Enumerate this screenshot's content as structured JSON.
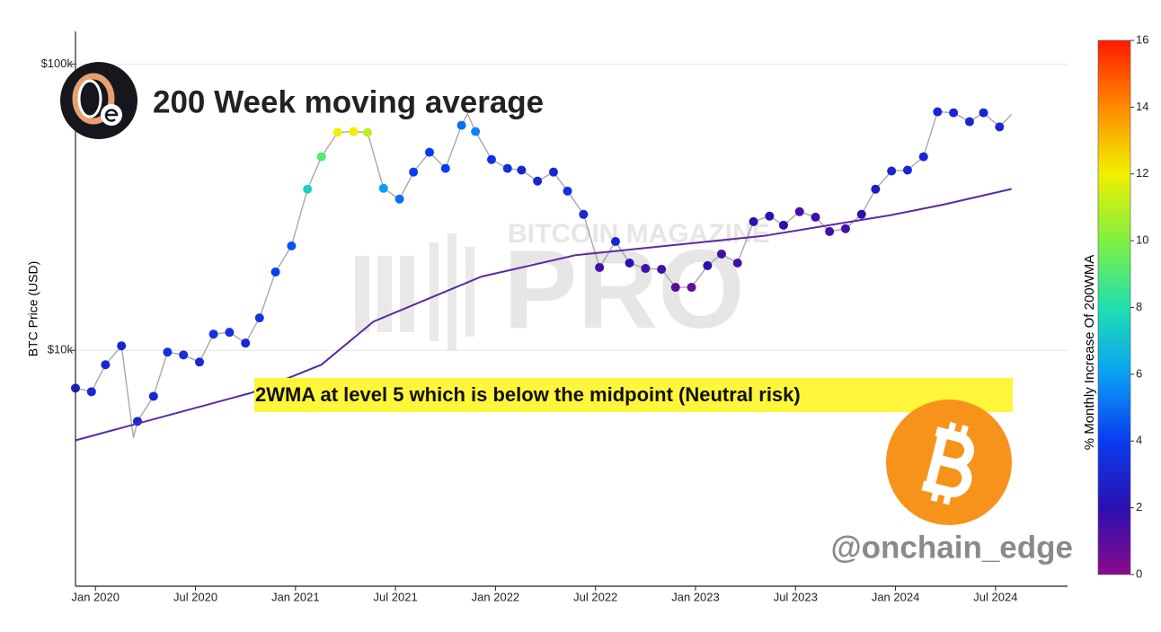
{
  "chart_data": {
    "type": "line",
    "title": "200 Week moving average",
    "y_label": "BTC Price (USD)",
    "annotation": "2WMA at level 5 which is below the midpoint (Neutral risk)",
    "handle": "@onchain_edge",
    "watermark": [
      "BITCOIN MAGAZINE",
      "PRO"
    ],
    "xlim": [
      2019.9,
      2024.86
    ],
    "xticks": [
      {
        "value": 2020,
        "label": "Jan 2020"
      },
      {
        "value": 2020.5,
        "label": "Jul 2020"
      },
      {
        "value": 2021,
        "label": "Jan 2021"
      },
      {
        "value": 2021.5,
        "label": "Jul 2021"
      },
      {
        "value": 2022,
        "label": "Jan 2022"
      },
      {
        "value": 2022.5,
        "label": "Jul 2022"
      },
      {
        "value": 2023,
        "label": "Jan 2023"
      },
      {
        "value": 2023.5,
        "label": "Jul 2023"
      },
      {
        "value": 2024,
        "label": "Jan 2024"
      },
      {
        "value": 2024.5,
        "label": "Jul 2024"
      }
    ],
    "ylim": [
      1500,
      130000
    ],
    "yticks": [
      {
        "value": 10000,
        "label": "$10k"
      },
      {
        "value": 100000,
        "label": "$100k"
      }
    ],
    "log_y": true,
    "grid": true,
    "series": [
      {
        "type": "line",
        "color": "#a8a8a8",
        "x": [
          2019.9,
          2019.98,
          2020.05,
          2020.13,
          2020.19,
          2020.21,
          2020.29,
          2020.36,
          2020.44,
          2020.52,
          2020.59,
          2020.67,
          2020.75,
          2020.82,
          2020.9,
          2020.98,
          2021.06,
          2021.13,
          2021.21,
          2021.29,
          2021.36,
          2021.44,
          2021.52,
          2021.59,
          2021.67,
          2021.75,
          2021.83,
          2021.86,
          2021.9,
          2021.98,
          2022.06,
          2022.13,
          2022.21,
          2022.29,
          2022.36,
          2022.44,
          2022.52,
          2022.6,
          2022.67,
          2022.75,
          2022.83,
          2022.9,
          2022.98,
          2023.06,
          2023.13,
          2023.21,
          2023.29,
          2023.37,
          2023.44,
          2023.52,
          2023.6,
          2023.67,
          2023.75,
          2023.83,
          2023.9,
          2023.98,
          2024.06,
          2024.14,
          2024.21,
          2024.29,
          2024.37,
          2024.44,
          2024.52,
          2024.58
        ],
        "values": [
          7380,
          7170,
          8910,
          10370,
          4950,
          5650,
          6910,
          9860,
          9640,
          9100,
          11390,
          11560,
          10600,
          12980,
          18780,
          23160,
          36560,
          47450,
          57700,
          58100,
          57700,
          36800,
          33750,
          41950,
          49200,
          43200,
          61100,
          67000,
          58100,
          46400,
          43200,
          42600,
          39000,
          41950,
          36000,
          29850,
          19470,
          24000,
          20180,
          19320,
          19190,
          16600,
          16600,
          19760,
          21700,
          20180,
          28160,
          29430,
          27360,
          30500,
          29190,
          26000,
          26600,
          29850,
          36560,
          42300,
          42600,
          47450,
          68100,
          67600,
          62900,
          67600,
          60300,
          66700
        ]
      },
      {
        "type": "scatter",
        "x": [
          2019.9,
          2019.98,
          2020.05,
          2020.13,
          2020.21,
          2020.29,
          2020.36,
          2020.44,
          2020.52,
          2020.59,
          2020.67,
          2020.75,
          2020.82,
          2020.9,
          2020.98,
          2021.06,
          2021.13,
          2021.21,
          2021.29,
          2021.36,
          2021.44,
          2021.52,
          2021.59,
          2021.67,
          2021.75,
          2021.83,
          2021.9,
          2021.98,
          2022.06,
          2022.13,
          2022.21,
          2022.29,
          2022.36,
          2022.44,
          2022.52,
          2022.6,
          2022.67,
          2022.75,
          2022.83,
          2022.9,
          2022.98,
          2023.06,
          2023.13,
          2023.21,
          2023.29,
          2023.37,
          2023.44,
          2023.52,
          2023.6,
          2023.67,
          2023.75,
          2023.83,
          2023.9,
          2023.98,
          2024.06,
          2024.14,
          2024.21,
          2024.29,
          2024.37,
          2024.44,
          2024.52
        ],
        "values": [
          7380,
          7170,
          8910,
          10370,
          5650,
          6910,
          9860,
          9640,
          9100,
          11390,
          11560,
          10600,
          12980,
          18780,
          23160,
          36560,
          47450,
          57700,
          58100,
          57700,
          36800,
          33750,
          41950,
          49200,
          43200,
          61100,
          58100,
          46400,
          43200,
          42600,
          39000,
          41950,
          36000,
          29850,
          19470,
          24000,
          20180,
          19320,
          19190,
          16600,
          16600,
          19760,
          21700,
          20180,
          28160,
          29430,
          27360,
          30500,
          29190,
          26000,
          26600,
          29850,
          36560,
          42300,
          42600,
          47450,
          68100,
          67600,
          62900,
          67600,
          60300
        ],
        "color_values": [
          3,
          3,
          3,
          3,
          3,
          3,
          3.5,
          3.5,
          3,
          3.5,
          3.5,
          3,
          3.5,
          4,
          4.5,
          7.5,
          9,
          12,
          12,
          11,
          6,
          5,
          4,
          4,
          4,
          5,
          5.5,
          3.5,
          3.5,
          3,
          3,
          3,
          3.5,
          3,
          1.5,
          3,
          2,
          1.5,
          1.5,
          1,
          1,
          2,
          1.5,
          1.5,
          2,
          2,
          2,
          1.5,
          1.5,
          1.5,
          1.5,
          2,
          2.5,
          3,
          3,
          3,
          3,
          3,
          3,
          3,
          3
        ]
      },
      {
        "type": "line",
        "color": "#5b2a9e",
        "x": [
          2019.9,
          2020.78,
          2021.13,
          2021.39,
          2021.93,
          2022.4,
          2023.34,
          2023.97,
          2024.24,
          2024.58
        ],
        "values": [
          4850,
          7110,
          8910,
          12600,
          18100,
          21500,
          25100,
          29600,
          32300,
          36600
        ]
      }
    ],
    "colorbar": {
      "title": "% Monthly Increase Of 200WMA",
      "lim": [
        0,
        16
      ],
      "ticks": [
        0,
        2,
        4,
        6,
        8,
        10,
        12,
        14,
        16
      ],
      "colorscale": [
        [
          0,
          "#8b0a8b"
        ],
        [
          2,
          "#2a10b0"
        ],
        [
          4,
          "#0a3cf0"
        ],
        [
          6,
          "#0aa0f5"
        ],
        [
          8,
          "#20e0b0"
        ],
        [
          10,
          "#80f040"
        ],
        [
          12,
          "#f0f000"
        ],
        [
          14,
          "#ff8a00"
        ],
        [
          16,
          "#ff1a00"
        ]
      ]
    }
  }
}
